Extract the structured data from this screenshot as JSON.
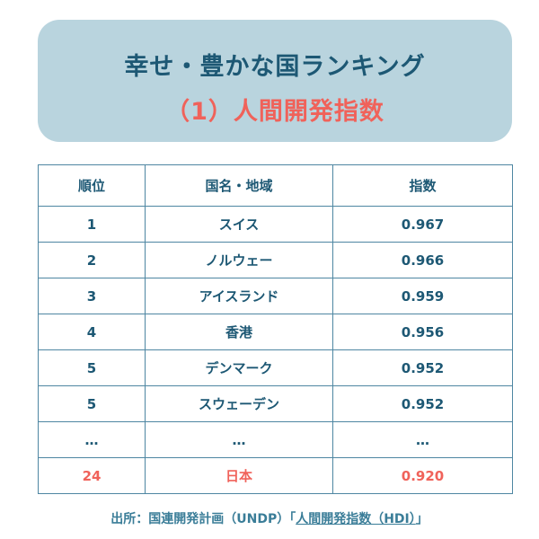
{
  "title": {
    "line1": "幸せ・豊かな国ランキング",
    "line2": "（1）人間開発指数"
  },
  "table": {
    "headers": [
      "順位",
      "国名・地域",
      "指数"
    ],
    "rows": [
      [
        "1",
        "スイス",
        "0.967"
      ],
      [
        "2",
        "ノルウェー",
        "0.966"
      ],
      [
        "3",
        "アイスランド",
        "0.959"
      ],
      [
        "4",
        "香港",
        "0.956"
      ],
      [
        "5",
        "デンマーク",
        "0.952"
      ],
      [
        "5",
        "スウェーデン",
        "0.952"
      ],
      [
        "…",
        "…",
        "…"
      ],
      [
        "24",
        "日本",
        "0.920"
      ]
    ]
  },
  "source": {
    "prefix": "出所：国連開発計画（UNDP）「",
    "link": "人間開発指数（HDI）",
    "suffix": "」"
  },
  "colors": {
    "primary": "#1d5874",
    "accent": "#f0625a",
    "title_bg": "#b9d4de"
  }
}
